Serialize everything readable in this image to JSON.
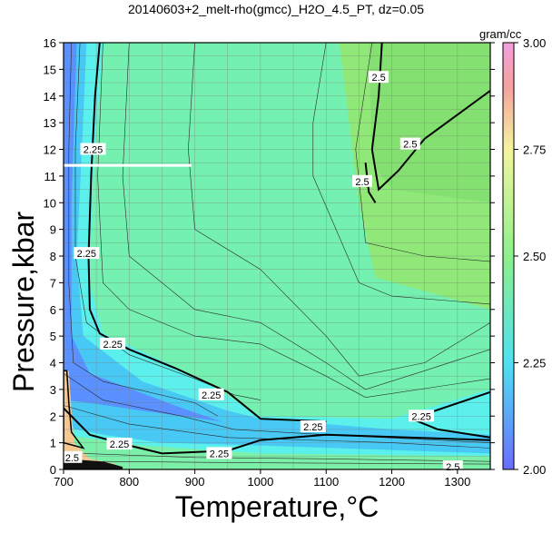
{
  "chart_data": {
    "type": "heatmap",
    "title": "20140603+2_melt-rho(gmcc)_H2O_4.5_PT, dz=0.05",
    "xlabel": "Temperature,°C",
    "ylabel": "Pressure,kbar",
    "colorbar_label": "gram/cc",
    "xlim": [
      700,
      1350
    ],
    "ylim": [
      0,
      16
    ],
    "x_ticks": [
      "700",
      "800",
      "900",
      "1000",
      "1100",
      "1200",
      "1300"
    ],
    "y_ticks": [
      "0",
      "1",
      "2",
      "3",
      "4",
      "5",
      "6",
      "7",
      "8",
      "9",
      "10",
      "11",
      "12",
      "13",
      "14",
      "15",
      "16"
    ],
    "colorbar_range": [
      2.0,
      3.0
    ],
    "colorbar_ticks": [
      "2.00",
      "2.25",
      "2.50",
      "2.75",
      "3.00"
    ],
    "contour_interval": 0.05,
    "contour_labels": [
      {
        "text": "2.5",
        "x": 1180,
        "y": 14.7
      },
      {
        "text": "2.5",
        "x": 1228,
        "y": 12.2
      },
      {
        "text": "2.5",
        "x": 1155,
        "y": 10.8
      },
      {
        "text": "2.25",
        "x": 745,
        "y": 12.0
      },
      {
        "text": "2.25",
        "x": 735,
        "y": 8.1
      },
      {
        "text": "2.25",
        "x": 775,
        "y": 4.7
      },
      {
        "text": "2.25",
        "x": 925,
        "y": 2.8
      },
      {
        "text": "2.25",
        "x": 1080,
        "y": 1.6
      },
      {
        "text": "2.25",
        "x": 1245,
        "y": 2.0
      },
      {
        "text": "2.25",
        "x": 785,
        "y": 0.95
      },
      {
        "text": "2.25",
        "x": 937,
        "y": 0.6
      },
      {
        "text": "2.5",
        "x": 713,
        "y": 0.45
      },
      {
        "text": "2.5",
        "x": 1293,
        "y": 0.1
      }
    ],
    "marker_line": {
      "x": [
        700,
        895
      ],
      "y": 11.4
    },
    "colors": {
      "low": "#6a6cff",
      "mid": "#4ee0f0",
      "high": "#8cf08c",
      "top": "#f4a0c8",
      "marker": "#ffffff"
    }
  }
}
